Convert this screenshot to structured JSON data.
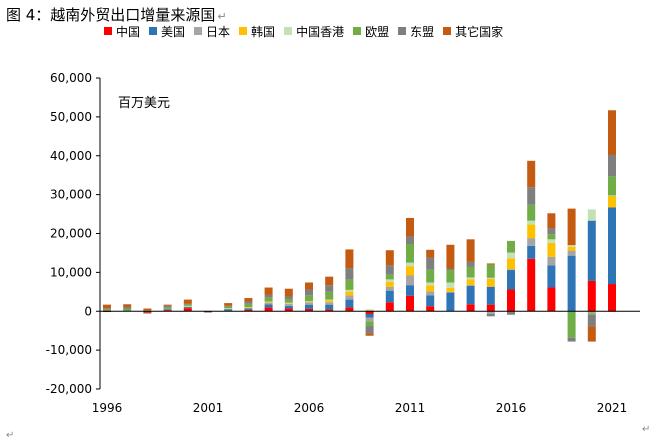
{
  "figure_title": "图 4：越南外贸出口增量来源国",
  "paragraph_mark": "↵",
  "chart_data": {
    "type": "bar",
    "stacked": true,
    "unit_label": "百万美元",
    "ylim": [
      -20000,
      60000
    ],
    "y_ticks": [
      "-20,000",
      "-10,000",
      "0",
      "10,000",
      "20,000",
      "30,000",
      "40,000",
      "50,000",
      "60,000"
    ],
    "y_tick_values": [
      -20000,
      -10000,
      0,
      10000,
      20000,
      30000,
      40000,
      50000,
      60000
    ],
    "x_ticks": [
      "1996",
      "2001",
      "2006",
      "2011",
      "2016",
      "2021"
    ],
    "categories": [
      1996,
      1997,
      1998,
      1999,
      2000,
      2001,
      2002,
      2003,
      2004,
      2005,
      2006,
      2007,
      2008,
      2009,
      2010,
      2011,
      2012,
      2013,
      2014,
      2015,
      2016,
      2017,
      2018,
      2019,
      2020,
      2021
    ],
    "legend_position": "top",
    "series": [
      {
        "name": "中国",
        "color": "#ff0000",
        "values": [
          -200,
          0,
          -400,
          300,
          800,
          -200,
          0,
          400,
          1000,
          700,
          600,
          500,
          1000,
          -700,
          2300,
          4000,
          1300,
          0,
          1800,
          1700,
          5600,
          13500,
          6100,
          0,
          7800,
          7000
        ]
      },
      {
        "name": "美国",
        "color": "#2e75b6",
        "values": [
          0,
          0,
          0,
          200,
          300,
          0,
          500,
          300,
          800,
          700,
          1100,
          1200,
          2000,
          -900,
          3000,
          2700,
          2800,
          4800,
          4800,
          4600,
          5000,
          3300,
          5700,
          14300,
          15500,
          19700
        ]
      },
      {
        "name": "日本",
        "color": "#a5a5a5",
        "values": [
          0,
          0,
          0,
          100,
          100,
          0,
          100,
          200,
          400,
          500,
          600,
          600,
          1100,
          -1000,
          1000,
          2500,
          1000,
          200,
          100,
          -700,
          200,
          2000,
          2200,
          1300,
          -500,
          -100
        ]
      },
      {
        "name": "韩国",
        "color": "#ffc000",
        "values": [
          0,
          0,
          0,
          0,
          100,
          0,
          100,
          100,
          200,
          200,
          200,
          500,
          1000,
          0,
          1300,
          2400,
          1600,
          1000,
          1500,
          2000,
          2800,
          3500,
          3600,
          1000,
          0,
          3000
        ]
      },
      {
        "name": "中国香港",
        "color": "#c5e0b4",
        "values": [
          0,
          0,
          0,
          0,
          100,
          0,
          100,
          100,
          100,
          100,
          100,
          200,
          400,
          500,
          600,
          900,
          700,
          1400,
          500,
          300,
          1500,
          1000,
          900,
          400,
          2900,
          100
        ]
      },
      {
        "name": "欧盟",
        "color": "#70ad47",
        "values": [
          500,
          600,
          300,
          400,
          300,
          100,
          400,
          800,
          1000,
          800,
          1500,
          2000,
          2600,
          -1200,
          1200,
          4800,
          3300,
          3200,
          2700,
          3400,
          3000,
          4100,
          1300,
          -6800,
          -400,
          4900
        ]
      },
      {
        "name": "东盟",
        "color": "#7f7f7f",
        "values": [
          300,
          500,
          -200,
          400,
          200,
          -100,
          200,
          600,
          700,
          800,
          1500,
          1700,
          3000,
          -1900,
          2400,
          1900,
          3100,
          400,
          1300,
          -600,
          -900,
          4500,
          1600,
          -1000,
          -3000,
          5500
        ]
      },
      {
        "name": "其它国家",
        "color": "#c55a11",
        "values": [
          900,
          700,
          400,
          300,
          1100,
          0,
          700,
          900,
          1900,
          2000,
          1800,
          2200,
          4800,
          -600,
          3900,
          4800,
          2000,
          6100,
          5800,
          300,
          0,
          6800,
          3800,
          9400,
          -3900,
          11500
        ]
      }
    ]
  }
}
